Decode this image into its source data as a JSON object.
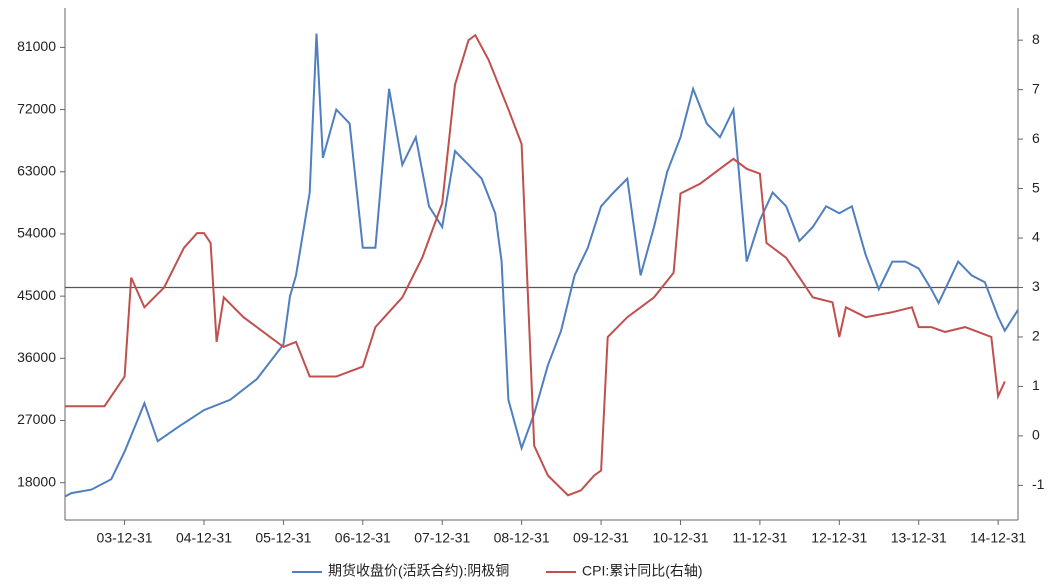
{
  "chart_data": {
    "type": "line",
    "xlim": [
      "03-03-31",
      "15-03-31"
    ],
    "xticks": [
      "03-12-31",
      "04-12-31",
      "05-12-31",
      "06-12-31",
      "07-12-31",
      "08-12-31",
      "09-12-31",
      "10-12-31",
      "11-12-31",
      "12-12-31",
      "13-12-31",
      "14-12-31"
    ],
    "ylim": [
      12600,
      86700
    ],
    "yticks": [
      18000,
      27000,
      36000,
      45000,
      54000,
      63000,
      72000,
      81000
    ],
    "y2lim": [
      -1.7,
      8.65
    ],
    "y2ticks": [
      -1,
      0,
      1,
      2,
      3,
      4,
      5,
      6,
      7,
      8
    ],
    "y2_hline": 3,
    "series": [
      {
        "name": "期货收盘价(活跃合约):阴极铜",
        "color": "#4f7fbf",
        "x": [
          "03-03-31",
          "03-04-30",
          "03-07-31",
          "03-10-31",
          "03-12-31",
          "04-02-29",
          "04-03-31",
          "04-05-31",
          "04-08-31",
          "04-12-31",
          "05-04-30",
          "05-08-31",
          "05-12-31",
          "06-01-31",
          "06-02-28",
          "06-04-30",
          "06-05-31",
          "06-06-30",
          "06-08-31",
          "06-10-31",
          "06-12-31",
          "07-02-28",
          "07-04-30",
          "07-06-30",
          "07-08-31",
          "07-10-31",
          "07-12-31",
          "08-02-29",
          "08-04-30",
          "08-06-30",
          "08-08-31",
          "08-09-30",
          "08-10-31",
          "08-12-31",
          "09-02-28",
          "09-04-30",
          "09-06-30",
          "09-08-31",
          "09-10-31",
          "09-12-31",
          "10-02-28",
          "10-04-30",
          "10-06-30",
          "10-08-31",
          "10-10-31",
          "10-12-31",
          "11-02-28",
          "11-04-30",
          "11-06-30",
          "11-08-31",
          "11-10-31",
          "11-12-31",
          "12-02-29",
          "12-04-30",
          "12-06-30",
          "12-08-31",
          "12-10-31",
          "12-12-31",
          "13-02-28",
          "13-04-30",
          "13-06-30",
          "13-08-31",
          "13-10-31",
          "13-12-31",
          "14-02-28",
          "14-03-31",
          "14-06-30",
          "14-08-31",
          "14-10-31",
          "14-12-31",
          "15-01-31",
          "15-03-31"
        ],
        "values": [
          16000,
          16500,
          17000,
          18500,
          22500,
          27000,
          29500,
          24000,
          26000,
          28500,
          30000,
          33000,
          38000,
          45000,
          48000,
          60000,
          83000,
          65000,
          72000,
          70000,
          52000,
          52000,
          75000,
          64000,
          68000,
          58000,
          55000,
          66000,
          64000,
          62000,
          57000,
          50000,
          30000,
          23000,
          28000,
          35000,
          40000,
          48000,
          52000,
          58000,
          60000,
          62000,
          48000,
          55000,
          63000,
          68000,
          75000,
          70000,
          68000,
          72000,
          50000,
          56000,
          60000,
          58000,
          53000,
          55000,
          58000,
          57000,
          58000,
          51000,
          46000,
          50000,
          50000,
          49000,
          46000,
          44000,
          50000,
          48000,
          47000,
          42000,
          40000,
          43000
        ]
      },
      {
        "name": "CPI:累计同比(右轴)",
        "color": "#c0504d",
        "axis": "y2",
        "x": [
          "03-03-31",
          "03-09-30",
          "03-12-31",
          "04-01-31",
          "04-03-31",
          "04-06-30",
          "04-09-30",
          "04-11-30",
          "04-12-31",
          "05-01-31",
          "05-02-28",
          "05-03-31",
          "05-06-30",
          "05-12-31",
          "06-02-28",
          "06-04-30",
          "06-08-31",
          "06-12-31",
          "07-02-28",
          "07-06-30",
          "07-09-30",
          "07-12-31",
          "08-02-29",
          "08-04-30",
          "08-05-31",
          "08-07-31",
          "08-10-31",
          "08-12-31",
          "09-02-28",
          "09-04-30",
          "09-07-31",
          "09-09-30",
          "09-11-30",
          "09-12-31",
          "10-01-31",
          "10-04-30",
          "10-08-31",
          "10-11-30",
          "10-12-31",
          "11-03-31",
          "11-06-30",
          "11-08-31",
          "11-10-31",
          "11-12-31",
          "12-01-31",
          "12-04-30",
          "12-08-31",
          "12-11-30",
          "12-12-31",
          "13-01-31",
          "13-04-30",
          "13-08-31",
          "13-11-30",
          "13-12-31",
          "14-02-28",
          "14-04-30",
          "14-07-31",
          "14-11-30",
          "14-12-31",
          "15-01-31"
        ],
        "values": [
          0.6,
          0.6,
          1.2,
          3.2,
          2.6,
          3.0,
          3.8,
          4.1,
          4.1,
          3.9,
          1.9,
          2.8,
          2.4,
          1.8,
          1.9,
          1.2,
          1.2,
          1.4,
          2.2,
          2.8,
          3.6,
          4.7,
          7.1,
          8.0,
          8.1,
          7.6,
          6.6,
          5.9,
          -0.2,
          -0.8,
          -1.2,
          -1.1,
          -0.8,
          -0.7,
          2.0,
          2.4,
          2.8,
          3.3,
          4.9,
          5.1,
          5.4,
          5.6,
          5.4,
          5.3,
          3.9,
          3.6,
          2.8,
          2.7,
          2.0,
          2.6,
          2.4,
          2.5,
          2.6,
          2.2,
          2.2,
          2.1,
          2.2,
          2.0,
          0.8,
          1.1
        ]
      }
    ]
  }
}
